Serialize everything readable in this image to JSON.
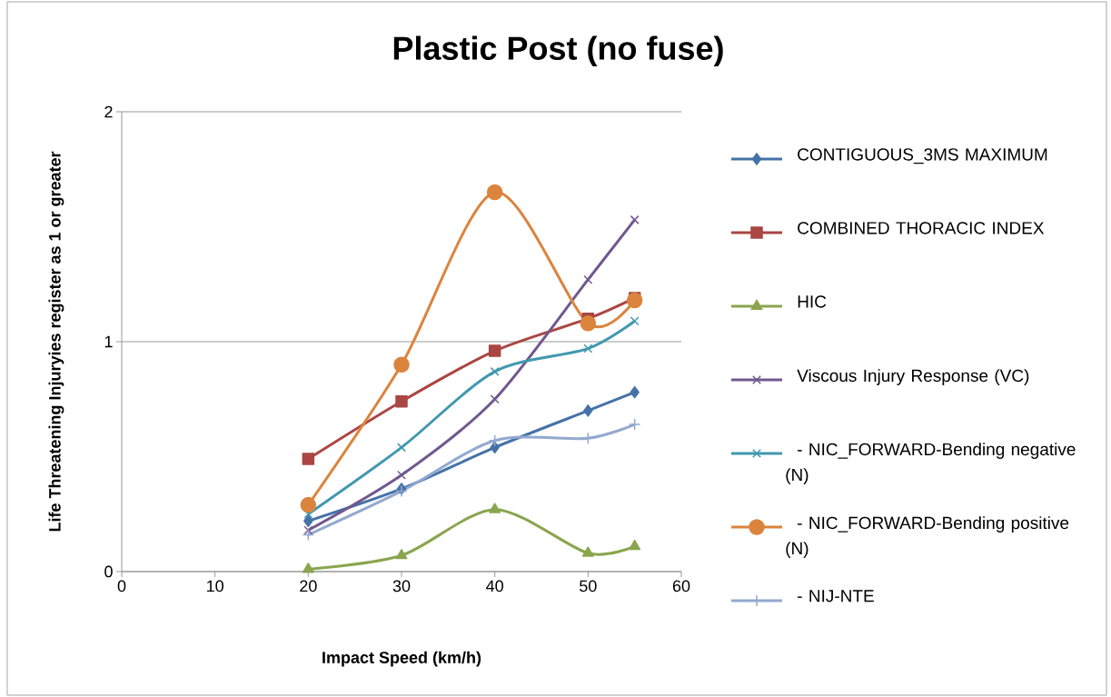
{
  "chart_data": {
    "type": "line",
    "title": "Plastic Post (no fuse)",
    "xlabel": "Impact Speed (km/h)",
    "ylabel": "Life Threatening Injuryies register as 1 or greater",
    "x": [
      20,
      30,
      40,
      50,
      55
    ],
    "xlim": [
      0,
      60
    ],
    "xticks": [
      0,
      10,
      20,
      30,
      40,
      50,
      60
    ],
    "ylim": [
      0,
      2
    ],
    "yticks": [
      0,
      1,
      2
    ],
    "grid": "y",
    "legend": "right",
    "series": [
      {
        "name": "CONTIGUOUS_3MS MAXIMUM",
        "color": "#4572a7",
        "marker": "diamond",
        "values": [
          0.22,
          0.36,
          0.54,
          0.7,
          0.78
        ]
      },
      {
        "name": "COMBINED THORACIC INDEX",
        "color": "#aa4643",
        "marker": "square",
        "values": [
          0.49,
          0.74,
          0.96,
          1.1,
          1.19
        ]
      },
      {
        "name": "HIC",
        "color": "#89a54e",
        "marker": "triangle",
        "values": [
          0.01,
          0.07,
          0.27,
          0.08,
          0.11
        ]
      },
      {
        "name": "Viscous Injury Response (VC)",
        "color": "#71588f",
        "marker": "cross",
        "values": [
          0.18,
          0.42,
          0.75,
          1.27,
          1.53
        ]
      },
      {
        "name": "- NIC_FORWARD-Bending negative (N)",
        "color": "#4198af",
        "marker": "cross",
        "values": [
          0.25,
          0.54,
          0.87,
          0.97,
          1.09
        ]
      },
      {
        "name": "- NIC_FORWARD-Bending positive (N)",
        "color": "#db843d",
        "marker": "circle",
        "values": [
          0.29,
          0.9,
          1.65,
          1.08,
          1.18
        ]
      },
      {
        "name": "- NIJ-NTE",
        "color": "#93a9cf",
        "marker": "plus",
        "values": [
          0.16,
          0.35,
          0.57,
          0.58,
          0.64
        ]
      }
    ]
  }
}
